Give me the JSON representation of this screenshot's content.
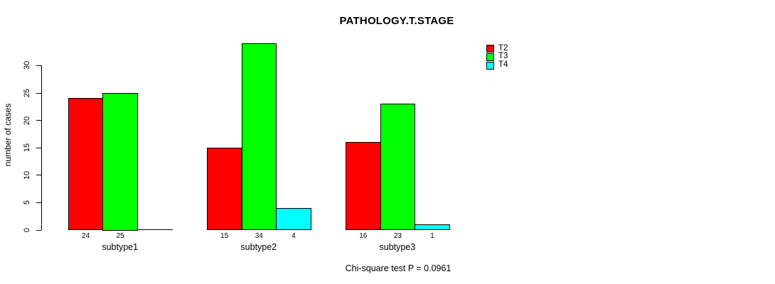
{
  "chart_data": {
    "type": "bar",
    "grouped": true,
    "title": "PATHOLOGY.T.STAGE",
    "ylabel": "number of cases",
    "xlabel": "",
    "subtitle": "Chi-square test P = 0.0961",
    "categories": [
      "subtype1",
      "subtype2",
      "subtype3"
    ],
    "series": [
      {
        "name": "T2",
        "color": "#FF0000",
        "values": [
          24,
          15,
          16
        ]
      },
      {
        "name": "T3",
        "color": "#00FF00",
        "values": [
          25,
          34,
          23
        ]
      },
      {
        "name": "T4",
        "color": "#00FFFF",
        "values": [
          0,
          4,
          1
        ]
      }
    ],
    "bar_value_labels": [
      [
        "24",
        "25",
        ""
      ],
      [
        "15",
        "34",
        "4"
      ],
      [
        "16",
        "23",
        "1"
      ]
    ],
    "yticks": [
      0,
      5,
      10,
      15,
      20,
      25,
      30
    ],
    "ylim": [
      0,
      34
    ],
    "grid": false,
    "legend_position": "top-right",
    "background_color": "#FFFFFF",
    "text_color": "#000000"
  }
}
